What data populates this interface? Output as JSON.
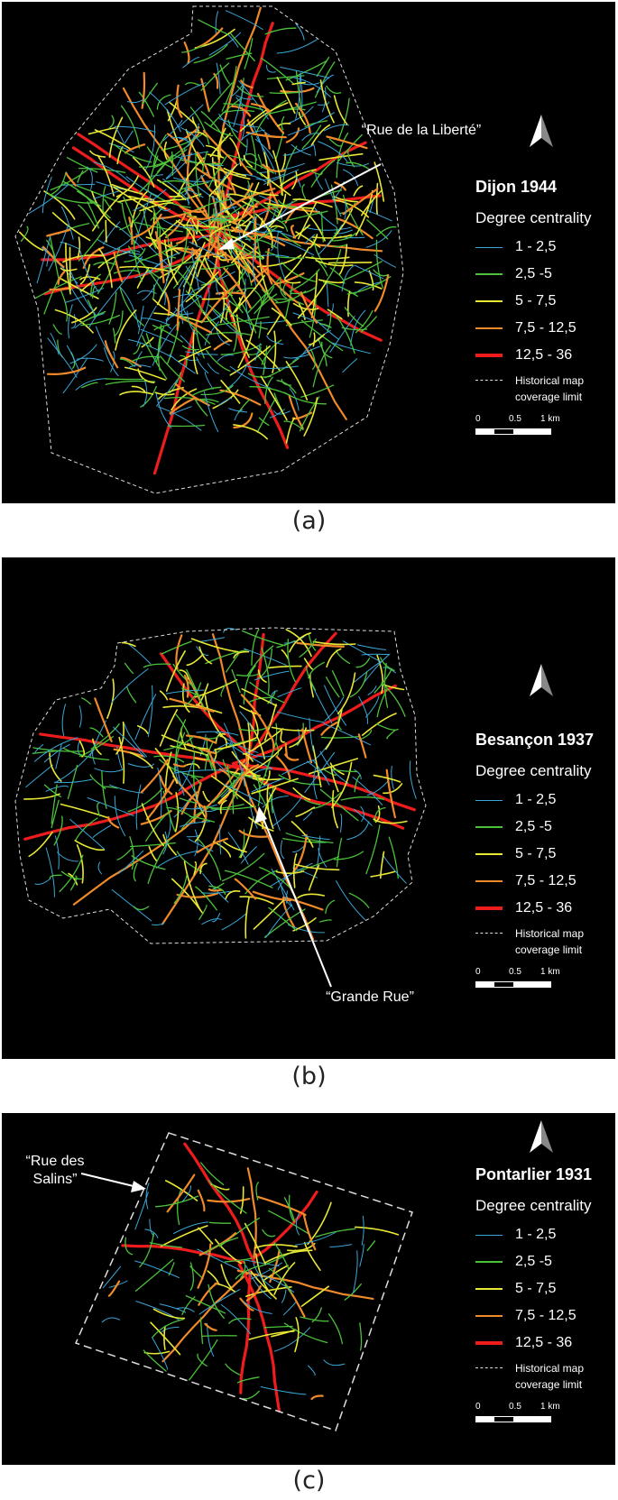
{
  "legend_classes": [
    {
      "label": "1 - 2,5",
      "color": "#3aa7d8"
    },
    {
      "label": "2,5 -5",
      "color": "#4cc23a"
    },
    {
      "label": "5 - 7,5",
      "color": "#e8e835"
    },
    {
      "label": "7,5 - 12,5",
      "color": "#f08a2a"
    },
    {
      "label": "12,5 - 36",
      "color": "#ee1c1c"
    }
  ],
  "legend_common": {
    "degree_label": "Degree centrality",
    "coverage_label": "Historical map coverage limit",
    "scale_labels": [
      "0",
      "0.5",
      "1 km"
    ]
  },
  "panels": [
    {
      "id": "a",
      "title": "Dijon 1944",
      "caption": "(a)",
      "annotation": "“Rue de la Liberté”"
    },
    {
      "id": "b",
      "title": "Besançon 1937",
      "caption": "(b)",
      "annotation": "“Grande Rue”"
    },
    {
      "id": "c",
      "title": "Pontarlier 1931",
      "caption": "(c)",
      "annotation": "“Rue des Salins”"
    }
  ]
}
